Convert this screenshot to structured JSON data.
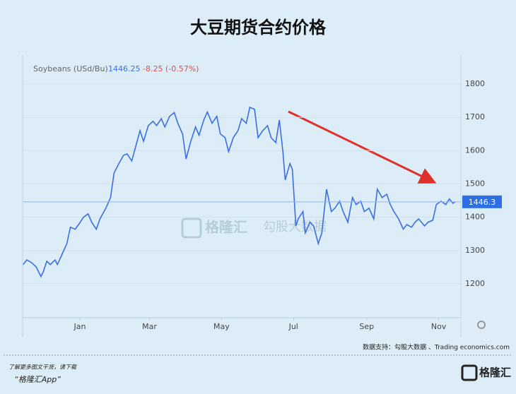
{
  "chart_data": {
    "type": "line",
    "title": "大豆期货合约价格",
    "header": {
      "name": "Soybeans (USd/Bu)",
      "price": "1446.25",
      "change": "-8.25 (-0.57%)"
    },
    "last_value_label": "1446.3",
    "watermark": {
      "brand": "格隆汇",
      "data": "勾股大数据"
    },
    "source": "数据支持：勾股大数据 、Trading economics.com",
    "footer": {
      "line1": "了解更多图文干货，请下载",
      "line2": "“格隆汇App”",
      "logo": "格隆汇"
    },
    "xlim": [
      -48,
      322
    ],
    "xticks": [
      {
        "value": 0,
        "label": "Jan"
      },
      {
        "value": 59,
        "label": "Mar"
      },
      {
        "value": 120,
        "label": "May"
      },
      {
        "value": 181,
        "label": "Jul"
      },
      {
        "value": 243,
        "label": "Sep"
      },
      {
        "value": 304,
        "label": "Nov"
      }
    ],
    "ylim": [
      1100,
      1880
    ],
    "yticks": [
      1200,
      1300,
      1400,
      1500,
      1600,
      1700,
      1800
    ],
    "grid": true,
    "series": [
      {
        "name": "Soybeans (USd/Bu)",
        "color": "#3b6fe0",
        "x": [
          -48,
          -45,
          -41,
          -37,
          -33,
          -31,
          -28,
          -25,
          -21,
          -19,
          -15,
          -11,
          -8,
          -4,
          -1,
          3,
          7,
          10,
          14,
          17,
          22,
          26,
          29,
          33,
          37,
          40,
          44,
          47,
          51,
          54,
          58,
          62,
          65,
          69,
          72,
          76,
          80,
          83,
          87,
          90,
          94,
          98,
          101,
          105,
          108,
          112,
          116,
          119,
          123,
          126,
          130,
          134,
          137,
          141,
          144,
          148,
          151,
          155,
          159,
          162,
          166,
          169,
          172,
          174,
          178,
          180,
          183,
          185,
          189,
          191,
          195,
          198,
          202,
          205,
          209,
          213,
          216,
          220,
          223,
          227,
          231,
          234,
          238,
          241,
          245,
          249,
          252,
          256,
          260,
          263,
          266,
          270,
          274,
          277,
          281,
          284,
          287,
          292,
          295,
          299,
          302,
          306,
          310,
          313,
          316,
          318
        ],
        "values": [
          1258,
          1272,
          1264,
          1251,
          1222,
          1236,
          1268,
          1258,
          1272,
          1258,
          1289,
          1321,
          1370,
          1364,
          1378,
          1400,
          1410,
          1385,
          1364,
          1395,
          1427,
          1459,
          1533,
          1561,
          1586,
          1590,
          1569,
          1608,
          1660,
          1628,
          1675,
          1688,
          1675,
          1696,
          1671,
          1703,
          1714,
          1682,
          1650,
          1575,
          1628,
          1671,
          1646,
          1692,
          1716,
          1682,
          1703,
          1650,
          1639,
          1597,
          1639,
          1660,
          1696,
          1682,
          1730,
          1724,
          1639,
          1660,
          1675,
          1639,
          1624,
          1692,
          1597,
          1512,
          1561,
          1544,
          1374,
          1395,
          1417,
          1353,
          1385,
          1374,
          1321,
          1353,
          1484,
          1417,
          1427,
          1448,
          1417,
          1385,
          1459,
          1438,
          1448,
          1417,
          1427,
          1395,
          1484,
          1459,
          1469,
          1438,
          1417,
          1395,
          1364,
          1378,
          1370,
          1385,
          1395,
          1374,
          1385,
          1391,
          1438,
          1448,
          1438,
          1455,
          1442,
          1446.25
        ]
      }
    ]
  }
}
